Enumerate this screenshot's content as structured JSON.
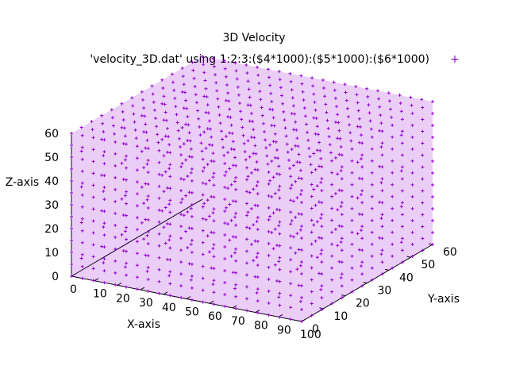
{
  "chart_data": {
    "type": "scatter",
    "title": "3D Velocity",
    "legend": {
      "label": "'velocity_3D.dat' using 1:2:3:($4*1000):($5*1000):($6*1000)",
      "marker": "+",
      "placement": "top-right"
    },
    "xlabel": "X-axis",
    "ylabel": "Y-axis",
    "zlabel": "Z-axis",
    "xlim": [
      0,
      100
    ],
    "ylim": [
      0,
      60
    ],
    "zlim": [
      0,
      60
    ],
    "xticks": [
      0,
      10,
      20,
      30,
      40,
      50,
      60,
      70,
      80,
      90,
      100
    ],
    "yticks": [
      0,
      10,
      20,
      30,
      40,
      50,
      60
    ],
    "zticks": [
      0,
      10,
      20,
      30,
      40,
      50,
      60
    ],
    "grid": false,
    "series": [
      {
        "name": "'velocity_3D.dat' using 1:2:3:($4*1000):($5*1000):($6*1000)",
        "color": "#9400d3",
        "x_range": [
          0,
          100
        ],
        "y_range": [
          0,
          60
        ],
        "z_range": [
          0,
          60
        ],
        "sampling": "regular grid filling the full box"
      }
    ]
  }
}
